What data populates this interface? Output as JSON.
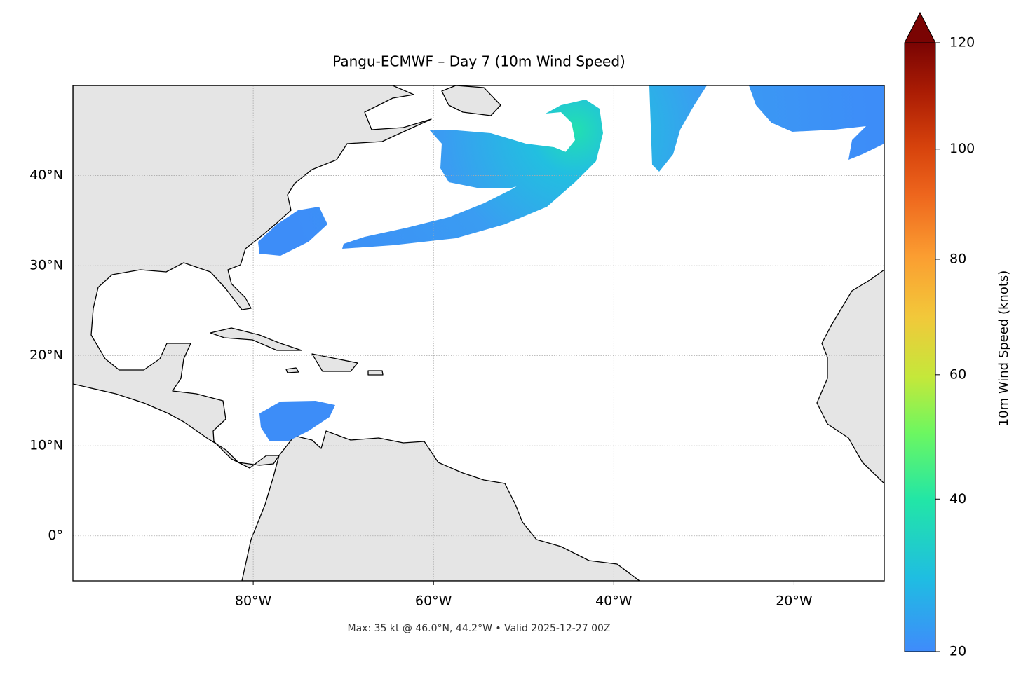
{
  "chart_data": {
    "type": "map",
    "title": "Pangu-ECMWF – Day 7 (10m Wind Speed)",
    "annotation": "Max: 35 kt @ 46.0°N, 44.2°W • Valid 2025-12-27 00Z",
    "xlim": [
      -100,
      -10
    ],
    "ylim": [
      -5,
      50
    ],
    "xticks": [
      {
        "value": -80,
        "label": "80°W"
      },
      {
        "value": -60,
        "label": "60°W"
      },
      {
        "value": -40,
        "label": "40°W"
      },
      {
        "value": -20,
        "label": "20°W"
      }
    ],
    "yticks": [
      {
        "value": 0,
        "label": "0°"
      },
      {
        "value": 10,
        "label": "10°N"
      },
      {
        "value": 20,
        "label": "20°N"
      },
      {
        "value": 30,
        "label": "30°N"
      },
      {
        "value": 40,
        "label": "40°N"
      }
    ],
    "grid": true,
    "colorbar": {
      "label": "10m Wind Speed (knots)",
      "lim": [
        20,
        120
      ],
      "ticks": [
        20,
        40,
        60,
        80,
        100,
        120
      ],
      "gamma": 0.86,
      "extend": "max"
    }
  }
}
